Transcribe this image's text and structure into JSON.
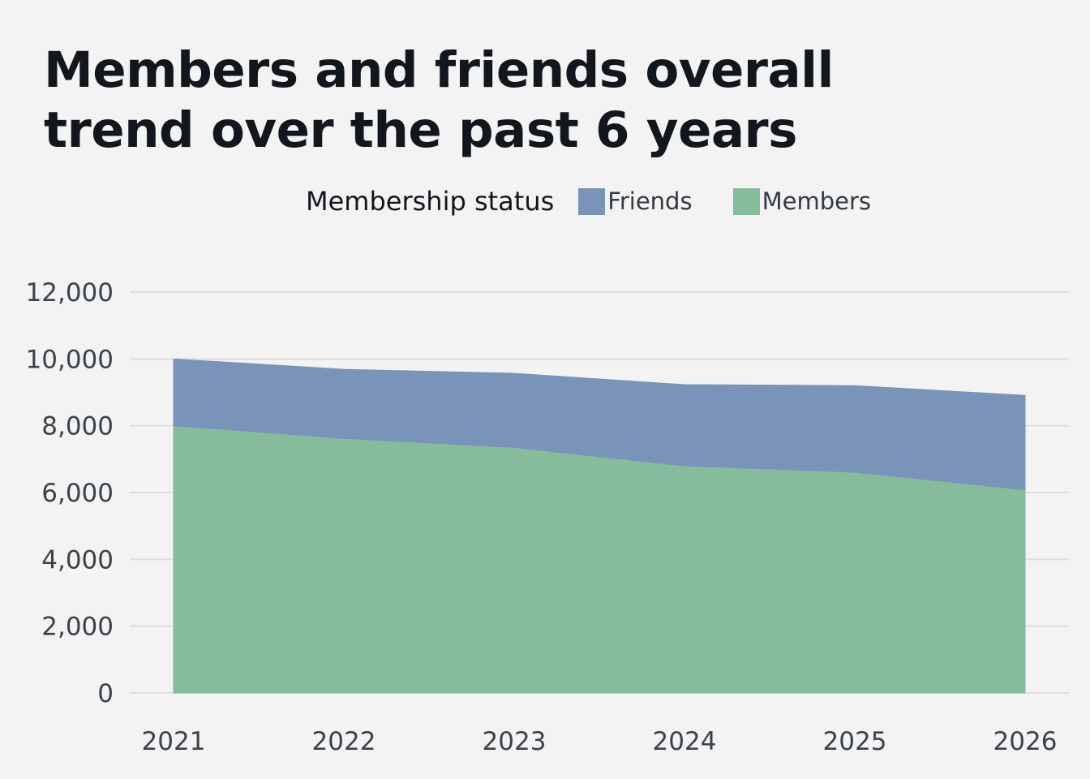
{
  "chart_data": {
    "type": "area",
    "stacked": true,
    "title": "Members and friends overall trend over the past 6 years",
    "legend": {
      "title": "Membership status",
      "placement": "top-center",
      "entries": [
        "Friends",
        "Members"
      ]
    },
    "x": [
      "2021",
      "2022",
      "2023",
      "2024",
      "2025",
      "2026"
    ],
    "series": [
      {
        "name": "Members",
        "color": "#86bb9b",
        "values": [
          8000,
          7620,
          7350,
          6800,
          6610,
          6080
        ]
      },
      {
        "name": "Friends",
        "color": "#7a93b8",
        "values": [
          2000,
          2070,
          2220,
          2430,
          2590,
          2830
        ]
      }
    ],
    "ylim": [
      0,
      12000
    ],
    "yticks": [
      0,
      2000,
      4000,
      6000,
      8000,
      10000,
      12000
    ],
    "ytick_labels": [
      "0",
      "2,000",
      "4,000",
      "6,000",
      "8,000",
      "10,000",
      "12,000"
    ],
    "xlabel": "",
    "ylabel": "",
    "grid": "horizontal"
  }
}
